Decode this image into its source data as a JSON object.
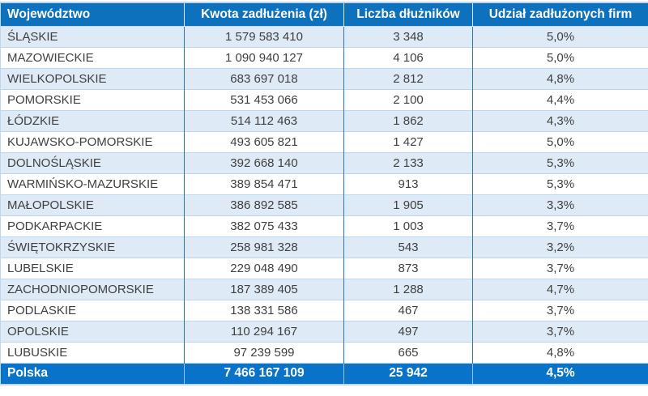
{
  "table": {
    "columns": [
      "Województwo",
      "Kwota zadłużenia (zł)",
      "Liczba dłużników",
      "Udział zadłużonych firm"
    ],
    "rows": [
      [
        "ŚLĄSKIE",
        "1 579 583 410",
        "3 348",
        "5,0%"
      ],
      [
        "MAZOWIECKIE",
        "1 090 940 127",
        "4 106",
        "5,0%"
      ],
      [
        "WIELKOPOLSKIE",
        "683 697 018",
        "2 812",
        "4,8%"
      ],
      [
        "POMORSKIE",
        "531 453 066",
        "2 100",
        "4,4%"
      ],
      [
        "ŁÓDZKIE",
        "514 112 463",
        "1 862",
        "4,3%"
      ],
      [
        "KUJAWSKO-POMORSKIE",
        "493 605 821",
        "1 427",
        "5,0%"
      ],
      [
        "DOLNOŚLĄSKIE",
        "392 668 140",
        "2 133",
        "5,3%"
      ],
      [
        "WARMIŃSKO-MAZURSKIE",
        "389 854 471",
        "913",
        "5,3%"
      ],
      [
        "MAŁOPOLSKIE",
        "386 892 585",
        "1 905",
        "3,3%"
      ],
      [
        "PODKARPACKIE",
        "382 075 433",
        "1 003",
        "3,7%"
      ],
      [
        "ŚWIĘTOKRZYSKIE",
        "258 981 328",
        "543",
        "3,2%"
      ],
      [
        "LUBELSKIE",
        "229 048 490",
        "873",
        "3,7%"
      ],
      [
        "ZACHODNIOPOMORSKIE",
        "187 389 405",
        "1 288",
        "4,7%"
      ],
      [
        "PODLASKIE",
        "138 331 586",
        "467",
        "3,7%"
      ],
      [
        "OPOLSKIE",
        "110 294 167",
        "497",
        "3,7%"
      ],
      [
        "LUBUSKIE",
        "97 239 599",
        "665",
        "4,8%"
      ]
    ],
    "footer": [
      "Polska",
      "7 466 167 109",
      "25 942",
      "4,5%"
    ]
  },
  "colors": {
    "header_bg": "#0d71be",
    "footer_bg": "#0873c9",
    "band_row_bg": "#deeaf6",
    "plain_row_bg": "#ffffff",
    "grid_vertical": "#2e75b6",
    "grid_horizontal": "#bdd7ee",
    "text": "#404040",
    "header_text": "#ffffff"
  },
  "chart_data": {
    "type": "table",
    "columns": [
      "Województwo",
      "Kwota zadłużenia (zł)",
      "Liczba dłużników",
      "Udział zadłużonych firm"
    ],
    "rows": [
      {
        "wojewodztwo": "ŚLĄSKIE",
        "kwota_zadluzenia_zl": 1579583410,
        "liczba_dluznikow": 3348,
        "udzial_zadluzonych_firm_pct": 5.0
      },
      {
        "wojewodztwo": "MAZOWIECKIE",
        "kwota_zadluzenia_zl": 1090940127,
        "liczba_dluznikow": 4106,
        "udzial_zadluzonych_firm_pct": 5.0
      },
      {
        "wojewodztwo": "WIELKOPOLSKIE",
        "kwota_zadluzenia_zl": 683697018,
        "liczba_dluznikow": 2812,
        "udzial_zadluzonych_firm_pct": 4.8
      },
      {
        "wojewodztwo": "POMORSKIE",
        "kwota_zadluzenia_zl": 531453066,
        "liczba_dluznikow": 2100,
        "udzial_zadluzonych_firm_pct": 4.4
      },
      {
        "wojewodztwo": "ŁÓDZKIE",
        "kwota_zadluzenia_zl": 514112463,
        "liczba_dluznikow": 1862,
        "udzial_zadluzonych_firm_pct": 4.3
      },
      {
        "wojewodztwo": "KUJAWSKO-POMORSKIE",
        "kwota_zadluzenia_zl": 493605821,
        "liczba_dluznikow": 1427,
        "udzial_zadluzonych_firm_pct": 5.0
      },
      {
        "wojewodztwo": "DOLNOŚLĄSKIE",
        "kwota_zadluzenia_zl": 392668140,
        "liczba_dluznikow": 2133,
        "udzial_zadluzonych_firm_pct": 5.3
      },
      {
        "wojewodztwo": "WARMIŃSKO-MAZURSKIE",
        "kwota_zadluzenia_zl": 389854471,
        "liczba_dluznikow": 913,
        "udzial_zadluzonych_firm_pct": 5.3
      },
      {
        "wojewodztwo": "MAŁOPOLSKIE",
        "kwota_zadluzenia_zl": 386892585,
        "liczba_dluznikow": 1905,
        "udzial_zadluzonych_firm_pct": 3.3
      },
      {
        "wojewodztwo": "PODKARPACKIE",
        "kwota_zadluzenia_zl": 382075433,
        "liczba_dluznikow": 1003,
        "udzial_zadluzonych_firm_pct": 3.7
      },
      {
        "wojewodztwo": "ŚWIĘTOKRZYSKIE",
        "kwota_zadluzenia_zl": 258981328,
        "liczba_dluznikow": 543,
        "udzial_zadluzonych_firm_pct": 3.2
      },
      {
        "wojewodztwo": "LUBELSKIE",
        "kwota_zadluzenia_zl": 229048490,
        "liczba_dluznikow": 873,
        "udzial_zadluzonych_firm_pct": 3.7
      },
      {
        "wojewodztwo": "ZACHODNIOPOMORSKIE",
        "kwota_zadluzenia_zl": 187389405,
        "liczba_dluznikow": 1288,
        "udzial_zadluzonych_firm_pct": 4.7
      },
      {
        "wojewodztwo": "PODLASKIE",
        "kwota_zadluzenia_zl": 138331586,
        "liczba_dluznikow": 467,
        "udzial_zadluzonych_firm_pct": 3.7
      },
      {
        "wojewodztwo": "OPOLSKIE",
        "kwota_zadluzenia_zl": 110294167,
        "liczba_dluznikow": 497,
        "udzial_zadluzonych_firm_pct": 3.7
      },
      {
        "wojewodztwo": "LUBUSKIE",
        "kwota_zadluzenia_zl": 97239599,
        "liczba_dluznikow": 665,
        "udzial_zadluzonych_firm_pct": 4.8
      }
    ],
    "total_row": {
      "wojewodztwo": "Polska",
      "kwota_zadluzenia_zl": 7466167109,
      "liczba_dluznikow": 25942,
      "udzial_zadluzonych_firm_pct": 4.5
    }
  }
}
